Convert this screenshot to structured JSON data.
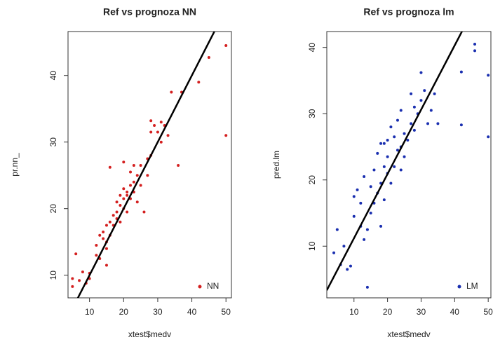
{
  "chart_data": [
    {
      "type": "scatter",
      "title": "Ref vs prognoza NN",
      "x_label": "xtest$medv",
      "y_label": "pr.nn_",
      "xlim": [
        3.7,
        51.6
      ],
      "ylim": [
        6.6,
        46.6
      ],
      "xticks": [
        10,
        20,
        30,
        40,
        50
      ],
      "yticks": [
        10,
        20,
        30,
        40
      ],
      "legend": "lower right",
      "reference_line": {
        "intercept": 0,
        "slope": 1,
        "color": "#000000"
      },
      "series": [
        {
          "name": "NN",
          "color": "#d42020",
          "x": [
            5,
            5,
            6,
            7,
            8,
            9,
            10,
            10,
            12,
            12,
            13,
            13,
            14,
            14,
            15,
            15,
            15,
            15,
            16,
            16,
            16,
            17,
            17,
            18,
            18,
            18,
            19,
            19,
            19,
            20,
            20,
            20,
            20,
            21,
            21,
            21,
            22,
            22,
            22,
            23,
            23,
            23,
            24,
            24,
            25,
            25,
            26,
            27,
            27,
            28,
            28,
            28,
            29,
            30,
            31,
            31,
            32,
            33,
            34,
            36,
            37,
            42,
            45,
            50,
            50
          ],
          "y": [
            8.3,
            9.5,
            13.2,
            9.2,
            10.5,
            8.8,
            9.5,
            10.3,
            13,
            14.5,
            16,
            12.5,
            15.5,
            16.5,
            15,
            17.5,
            14,
            11.5,
            18,
            16,
            26.2,
            19,
            17.5,
            18.5,
            19.5,
            21,
            20.5,
            22,
            18,
            20,
            21.5,
            23,
            27,
            22.5,
            22,
            19.5,
            23.5,
            25.5,
            21.5,
            24,
            22.5,
            26.5,
            25,
            21,
            23.5,
            26.5,
            19.5,
            25,
            27.5,
            28,
            31.5,
            33.2,
            32.5,
            31.5,
            30,
            33,
            32.5,
            31,
            37.5,
            26.5,
            37.5,
            39,
            42.7,
            44.5,
            31
          ]
        }
      ]
    },
    {
      "type": "scatter",
      "title": "Ref vs prognoza lm",
      "x_label": "xtest$medv",
      "y_label": "pred.lm",
      "xlim": [
        1.9,
        50.8
      ],
      "ylim": [
        2.2,
        42.4
      ],
      "xticks": [
        10,
        20,
        30,
        40,
        50
      ],
      "yticks": [
        10,
        20,
        30,
        40
      ],
      "legend": "lower right",
      "reference_line": {
        "intercept": 1.5,
        "slope": 0.97,
        "color": "#000000"
      },
      "series": [
        {
          "name": "LM",
          "color": "#1a2fb0",
          "x": [
            4,
            5,
            6,
            7,
            8,
            9,
            10,
            10,
            11,
            12,
            12,
            13,
            13,
            14,
            14,
            15,
            15,
            16,
            16,
            17,
            17,
            18,
            18,
            18,
            19,
            19,
            19,
            20,
            20,
            20,
            21,
            21,
            22,
            22,
            23,
            23,
            24,
            24,
            24,
            25,
            25,
            26,
            27,
            27,
            28,
            28,
            29,
            30,
            30,
            31,
            32,
            33,
            34,
            35,
            42,
            42,
            46,
            46,
            50,
            50
          ],
          "y": [
            9,
            12.5,
            7.2,
            10,
            6.5,
            7,
            14.5,
            17.5,
            18.5,
            13,
            16.5,
            11,
            20.5,
            3.8,
            12.5,
            15,
            19,
            16.5,
            21.5,
            18,
            24,
            13,
            19.5,
            25.5,
            17,
            22,
            25.5,
            21,
            23.5,
            26,
            19.5,
            28,
            22,
            26.5,
            24.5,
            29,
            25,
            21.5,
            30.5,
            23.5,
            27,
            26,
            33,
            28.5,
            31,
            27.5,
            30,
            36.2,
            32,
            33.5,
            28.5,
            30.5,
            33,
            28.5,
            36.3,
            28.3,
            40.5,
            39.5,
            35.8,
            26.5
          ]
        }
      ]
    }
  ]
}
